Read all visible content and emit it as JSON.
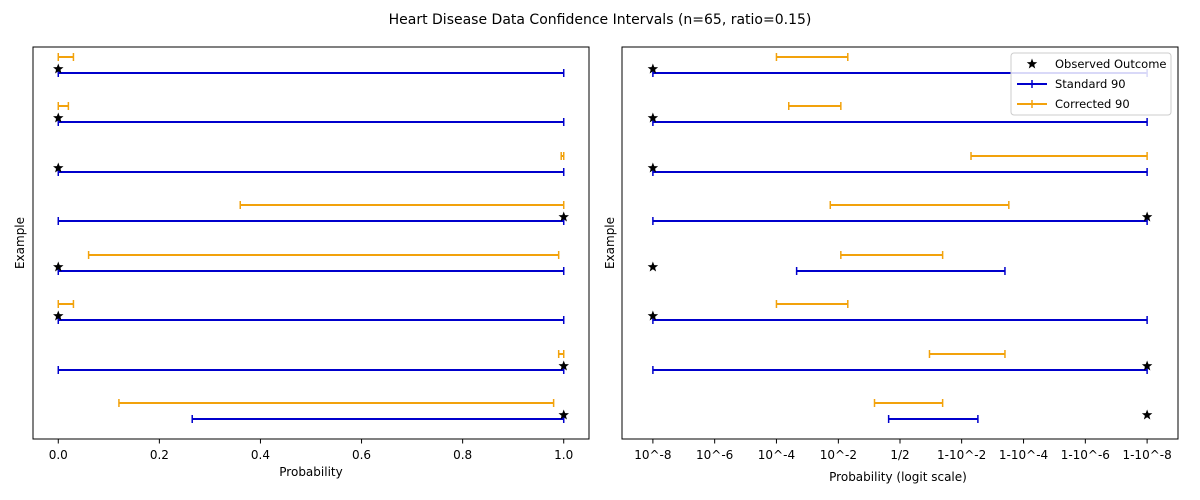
{
  "figure": {
    "title": "Heart Disease Data Confidence Intervals (n=65, ratio=0.15)"
  },
  "colors": {
    "standard": "#0000cc",
    "corrected": "#f2a20c",
    "observed": "#000000"
  },
  "chart_data": [
    {
      "type": "errorbar",
      "xlabel": "Probability",
      "ylabel": "Example",
      "xlim": [
        -0.05,
        1.05
      ],
      "x_ticks": [
        0.0,
        0.2,
        0.4,
        0.6,
        0.8,
        1.0
      ],
      "x_tick_labels": [
        "0.0",
        "0.2",
        "0.4",
        "0.6",
        "0.8",
        "1.0"
      ],
      "y_ticks_shown": false,
      "examples": [
        {
          "observed": 0,
          "standard": [
            0.0,
            1.0
          ],
          "corrected": [
            0.0,
            0.03
          ]
        },
        {
          "observed": 0,
          "standard": [
            0.0,
            1.0
          ],
          "corrected": [
            0.0,
            0.02
          ]
        },
        {
          "observed": 0,
          "standard": [
            0.0,
            1.0
          ],
          "corrected": [
            0.995,
            1.0
          ]
        },
        {
          "observed": 1,
          "standard": [
            0.0,
            1.0
          ],
          "corrected": [
            0.36,
            1.0
          ]
        },
        {
          "observed": 0,
          "standard": [
            0.0,
            1.0
          ],
          "corrected": [
            0.06,
            0.99
          ]
        },
        {
          "observed": 0,
          "standard": [
            0.0,
            1.0
          ],
          "corrected": [
            0.0,
            0.03
          ]
        },
        {
          "observed": 1,
          "standard": [
            0.0,
            1.0
          ],
          "corrected": [
            0.99,
            1.0
          ]
        },
        {
          "observed": 1,
          "standard": [
            0.265,
            1.0
          ],
          "corrected": [
            0.12,
            0.98
          ]
        }
      ]
    },
    {
      "type": "errorbar",
      "xlabel": "Probability (logit scale)",
      "ylabel": "Example",
      "x_scale": "logit",
      "xlim": [
        1e-09,
        0.999999999
      ],
      "x_ticks": [
        1e-08,
        1e-06,
        0.0001,
        0.01,
        0.5,
        0.99,
        0.9999,
        0.999999,
        0.99999999
      ],
      "x_tick_labels": [
        "10^-8",
        "10^-6",
        "10^-4",
        "10^-2",
        "1/2",
        "1-10^-2",
        "1-10^-4",
        "1-10^-6",
        "1-10^-8"
      ],
      "y_ticks_shown": false,
      "legend": {
        "position": "upper right",
        "entries": [
          "Observed Outcome",
          "Standard 90",
          "Corrected 90"
        ]
      },
      "examples": [
        {
          "observed": 1e-08,
          "standard": [
            1e-08,
            0.99999999
          ],
          "corrected": [
            0.0001,
            0.02
          ]
        },
        {
          "observed": 1e-08,
          "standard": [
            1e-08,
            0.99999999
          ],
          "corrected": [
            0.00025,
            0.012
          ]
        },
        {
          "observed": 1e-08,
          "standard": [
            1e-08,
            0.99999999
          ],
          "corrected": [
            0.995,
            0.99999999
          ]
        },
        {
          "observed": 0.99999999,
          "standard": [
            1e-08,
            0.99999999
          ],
          "corrected": [
            0.0055,
            0.9997
          ]
        },
        {
          "observed": 1e-08,
          "standard": [
            0.00045,
            0.9996
          ],
          "corrected": [
            0.012,
            0.96
          ]
        },
        {
          "observed": 1e-08,
          "standard": [
            1e-08,
            0.99999999
          ],
          "corrected": [
            0.0001,
            0.02
          ]
        },
        {
          "observed": 0.99999999,
          "standard": [
            1e-08,
            0.99999999
          ],
          "corrected": [
            0.9,
            0.9996
          ]
        },
        {
          "observed": 0.99999999,
          "standard": [
            0.3,
            0.997
          ],
          "corrected": [
            0.13,
            0.96
          ]
        }
      ]
    }
  ]
}
